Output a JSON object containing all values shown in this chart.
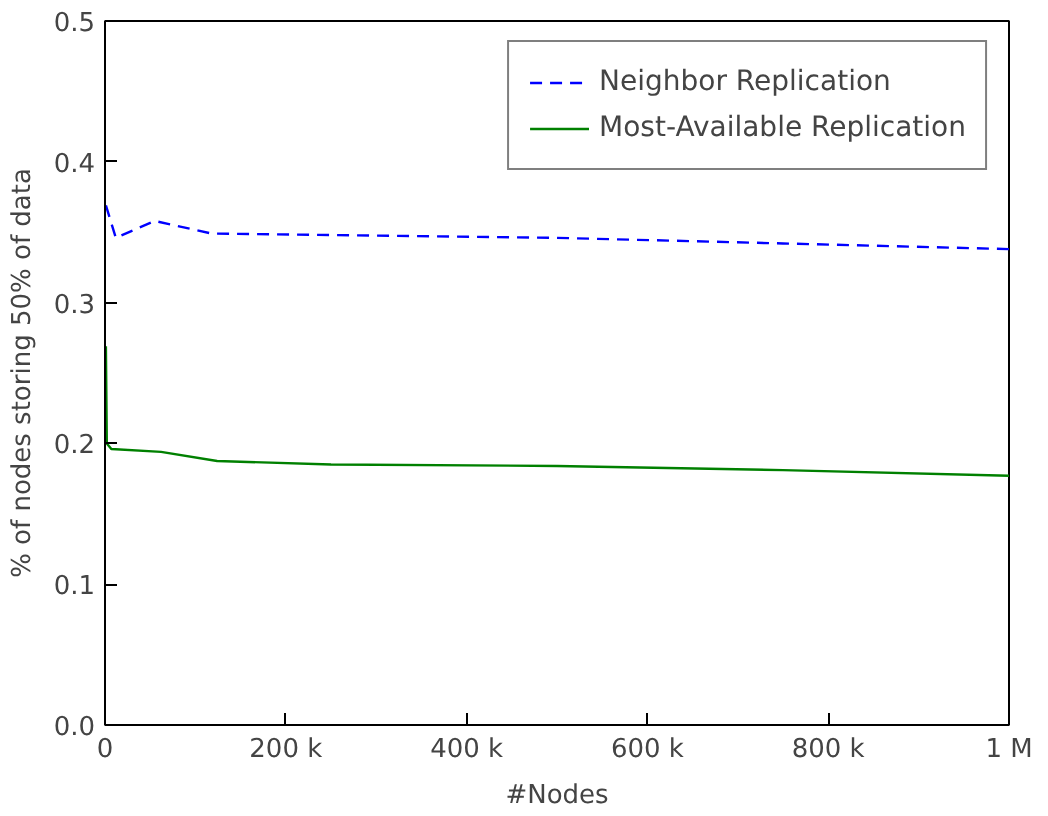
{
  "chart_data": {
    "type": "line",
    "xlabel": "#Nodes",
    "ylabel": "% of nodes storing 50% of data",
    "xlim": [
      0,
      1000000
    ],
    "ylim": [
      0,
      0.5
    ],
    "xticks": [
      0,
      {
        "value": 200000,
        "label": "200 k"
      },
      {
        "value": 400000,
        "label": "400 k"
      },
      {
        "value": 600000,
        "label": "600 k"
      },
      {
        "value": 800000,
        "label": "800 k"
      },
      {
        "value": 1000000,
        "label": "1 M"
      }
    ],
    "yticks": [
      {
        "value": 0,
        "label": "0.0"
      },
      0.1,
      0.2,
      0.3,
      0.4,
      0.5
    ],
    "legend": "top right",
    "grid": false,
    "series": [
      {
        "name": "Neighbor Replication",
        "color": "#0000ff",
        "line_style": "dashed",
        "x": [
          1000,
          12000,
          55000,
          118000,
          250000,
          500000,
          750000,
          1000000
        ],
        "values": [
          0.369,
          0.346,
          0.358,
          0.349,
          0.348,
          0.346,
          0.342,
          0.338
        ]
      },
      {
        "name": "Most-Available Replication",
        "color": "#008000",
        "line_style": "solid",
        "x": [
          1000,
          2000,
          7000,
          62000,
          124000,
          250000,
          500000,
          750000,
          1000000
        ],
        "values": [
          0.269,
          0.2,
          0.196,
          0.194,
          0.1875,
          0.185,
          0.184,
          0.181,
          0.177
        ]
      }
    ]
  }
}
